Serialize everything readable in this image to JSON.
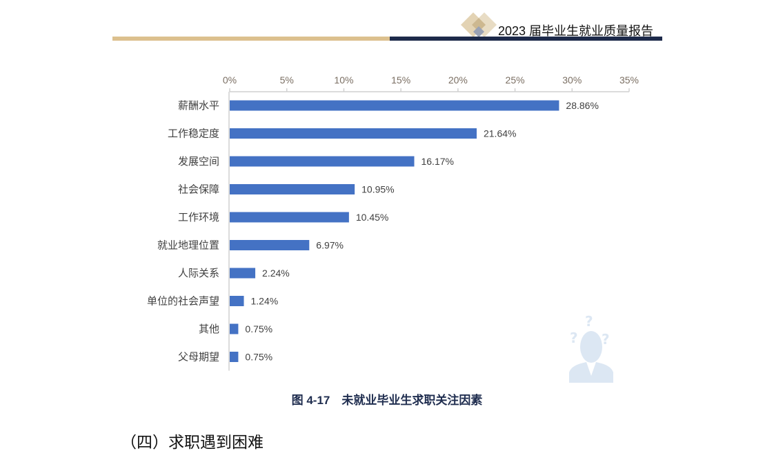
{
  "header": {
    "title": "2023 届毕业生就业质量报告"
  },
  "caption": "图 4-17　未就业毕业生求职关注因素",
  "section_heading": "（四）求职遇到困难",
  "colors": {
    "bar": "#4472C4",
    "gold": "#dcc08e",
    "navy": "#1d2a4a"
  },
  "icons": {
    "logo": "diamond-logo-icon",
    "illustration": "confused-person-icon"
  },
  "chart_data": {
    "type": "bar",
    "orientation": "horizontal",
    "title": "",
    "xlabel": "",
    "ylabel": "",
    "xlim": [
      0,
      35
    ],
    "x_ticks": [
      "0%",
      "5%",
      "10%",
      "15%",
      "20%",
      "25%",
      "30%",
      "35%"
    ],
    "x_tick_values": [
      0,
      5,
      10,
      15,
      20,
      25,
      30,
      35
    ],
    "axis_position": "top",
    "grid": false,
    "categories": [
      "薪酬水平",
      "工作稳定度",
      "发展空间",
      "社会保障",
      "工作环境",
      "就业地理位置",
      "人际关系",
      "单位的社会声望",
      "其他",
      "父母期望"
    ],
    "values": [
      28.86,
      21.64,
      16.17,
      10.95,
      10.45,
      6.97,
      2.24,
      1.24,
      0.75,
      0.75
    ],
    "data_labels": [
      "28.86%",
      "21.64%",
      "16.17%",
      "10.95%",
      "10.45%",
      "6.97%",
      "2.24%",
      "1.24%",
      "0.75%",
      "0.75%"
    ]
  }
}
